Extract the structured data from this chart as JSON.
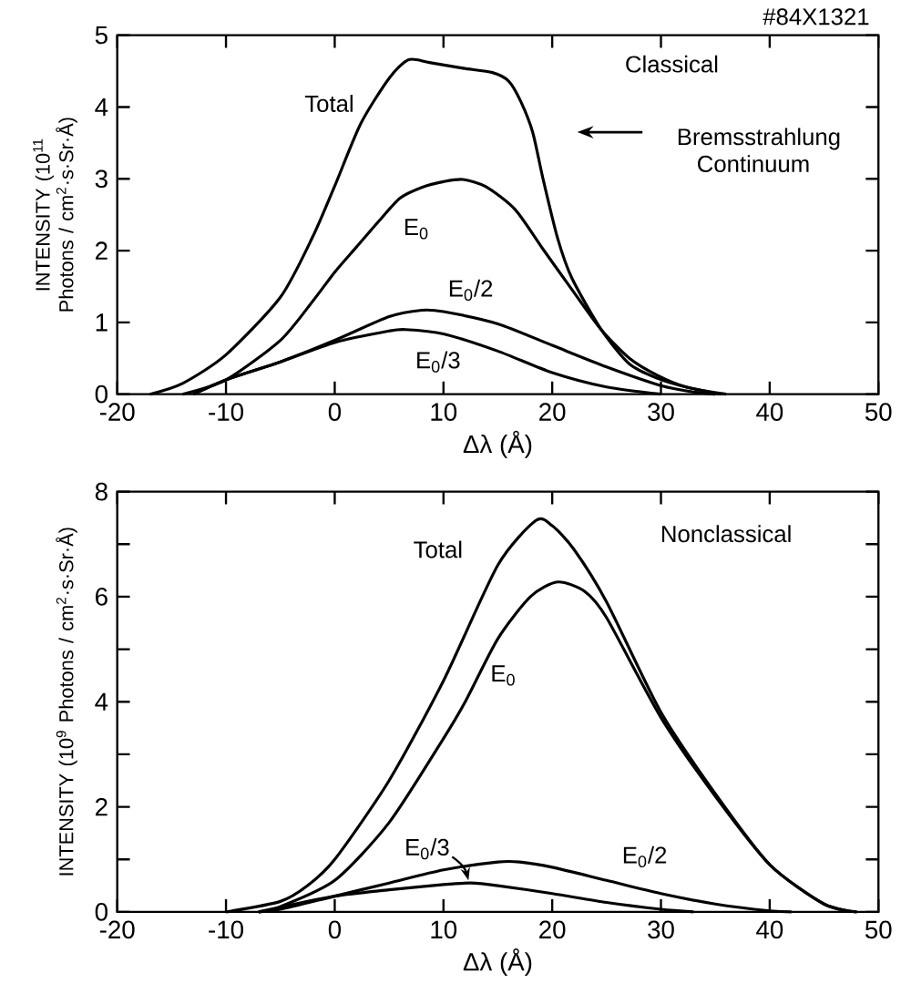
{
  "chart_data": [
    {
      "type": "line",
      "xlabel": "Δλ (Å)",
      "ylabel": "INTENSITY (10$^{11}$ Photons / cm$^{2}$·s·Sr·Å)",
      "annotations": [
        "#84X1321",
        "Classical",
        "Bremsstrahlung Continuum"
      ],
      "xlim": [
        -20,
        50
      ],
      "ylim": [
        0,
        5
      ],
      "xticks": [
        -20,
        -10,
        0,
        10,
        20,
        30,
        40,
        50
      ],
      "yticks": [
        0,
        1,
        2,
        3,
        4,
        5
      ],
      "marker": "none",
      "line_style": "solid",
      "series": [
        {
          "name": "Total",
          "color": "#000000",
          "x": [
            -17,
            -14,
            -10,
            -5,
            -2,
            0,
            2.4,
            5,
            6.8,
            8.7,
            11.8,
            14.5,
            16,
            17.1,
            18.2,
            19.2,
            20.5,
            21.8,
            24.5,
            27.1,
            29.7,
            32.3,
            35.5
          ],
          "values": [
            0,
            0.15,
            0.55,
            1.35,
            2.2,
            2.9,
            3.77,
            4.4,
            4.66,
            4.62,
            4.54,
            4.48,
            4.36,
            4.08,
            3.65,
            2.97,
            2.17,
            1.62,
            0.9,
            0.42,
            0.22,
            0.1,
            0
          ]
        },
        {
          "name": "E$_{0}$",
          "color": "#000000",
          "x": [
            -14,
            -10,
            -5,
            -2,
            0,
            2,
            4,
            6,
            8,
            10,
            11.8,
            13.9,
            16.6,
            19.2,
            21.8,
            24.5,
            27.1,
            29.7,
            32.3,
            36
          ],
          "values": [
            0,
            0.2,
            0.75,
            1.3,
            1.7,
            2.05,
            2.4,
            2.73,
            2.88,
            2.96,
            2.99,
            2.89,
            2.57,
            2.01,
            1.46,
            0.9,
            0.5,
            0.26,
            0.1,
            0
          ]
        },
        {
          "name": "E$_{0}$/2",
          "color": "#000000",
          "x": [
            -13,
            -10,
            -5,
            0,
            5,
            8,
            10,
            15,
            20,
            25,
            30,
            33,
            35
          ],
          "values": [
            0,
            0.2,
            0.45,
            0.75,
            1.08,
            1.17,
            1.15,
            0.98,
            0.68,
            0.38,
            0.12,
            0.03,
            0
          ]
        },
        {
          "name": "E$_{0}$/3",
          "color": "#000000",
          "x": [
            -13,
            -10,
            -5,
            0,
            5,
            6.5,
            10,
            15,
            20,
            25,
            30
          ],
          "values": [
            0,
            0.2,
            0.45,
            0.72,
            0.88,
            0.9,
            0.84,
            0.6,
            0.3,
            0.1,
            0
          ]
        }
      ]
    },
    {
      "type": "line",
      "xlabel": "Δλ (Å)",
      "ylabel": "INTENSITY (10$^{9}$ Photons / cm$^{2}$·s·Sr·Å)",
      "annotations": [
        "Nonclassical"
      ],
      "xlim": [
        -20,
        50
      ],
      "ylim": [
        0,
        8
      ],
      "xticks": [
        -20,
        -10,
        0,
        10,
        20,
        30,
        40,
        50
      ],
      "yticks": [
        0,
        {
          "value": 1,
          "label": null
        },
        2,
        {
          "value": 3,
          "label": null
        },
        4,
        {
          "value": 5,
          "label": null
        },
        6,
        {
          "value": 7,
          "label": null
        },
        8
      ],
      "marker": "none",
      "line_style": "solid",
      "series": [
        {
          "name": "Total",
          "color": "#000000",
          "x": [
            -10,
            -5,
            -2.5,
            0,
            5,
            10,
            15,
            18.5,
            20,
            22,
            25,
            30,
            35,
            40,
            45,
            48
          ],
          "values": [
            0,
            0.2,
            0.5,
            1.0,
            2.5,
            4.4,
            6.6,
            7.45,
            7.35,
            6.9,
            5.9,
            3.8,
            2.25,
            0.9,
            0.15,
            0
          ]
        },
        {
          "name": "E$_{0}$",
          "color": "#000000",
          "x": [
            -7,
            -5,
            0,
            5,
            10,
            12,
            15,
            18,
            20.5,
            23,
            25,
            30,
            35,
            40,
            45,
            48
          ],
          "values": [
            0,
            0.1,
            0.6,
            1.7,
            3.3,
            4.0,
            5.2,
            6.0,
            6.28,
            6.1,
            5.6,
            3.7,
            2.2,
            0.9,
            0.15,
            0
          ]
        },
        {
          "name": "E$_{0}$/2",
          "color": "#000000",
          "x": [
            -7,
            -5,
            0,
            5,
            10,
            15,
            17,
            20,
            25,
            30,
            35,
            40,
            42
          ],
          "values": [
            0,
            0.05,
            0.3,
            0.55,
            0.8,
            0.95,
            0.95,
            0.85,
            0.6,
            0.35,
            0.15,
            0.02,
            0
          ]
        },
        {
          "name": "E$_{0}$/3",
          "color": "#000000",
          "x": [
            -7,
            0,
            5,
            10,
            12.5,
            15,
            20,
            25,
            30,
            33
          ],
          "values": [
            0,
            0.3,
            0.42,
            0.52,
            0.55,
            0.5,
            0.35,
            0.18,
            0.05,
            0
          ]
        }
      ]
    }
  ]
}
